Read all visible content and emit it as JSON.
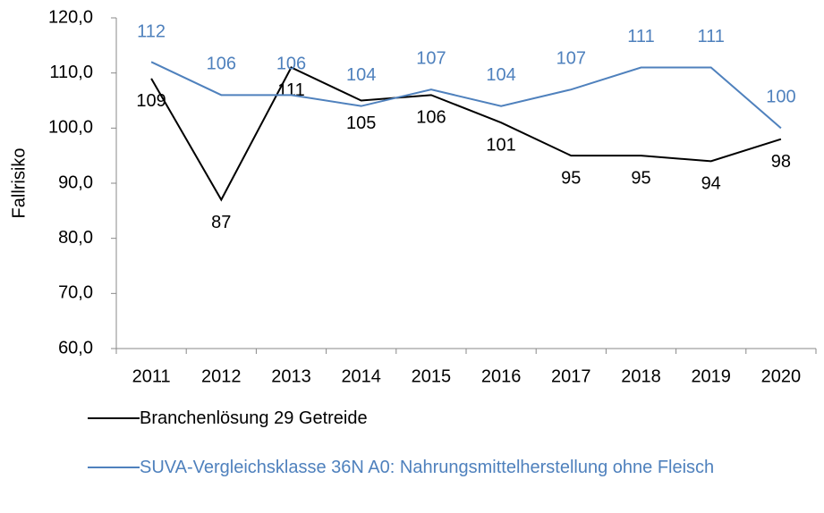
{
  "chart_data": {
    "type": "line",
    "y_label": "Fallrisiko",
    "categories": [
      "2011",
      "2012",
      "2013",
      "2014",
      "2015",
      "2016",
      "2017",
      "2018",
      "2019",
      "2020"
    ],
    "series": [
      {
        "name": "Branchenlösung 29 Getreide",
        "color": "#000000",
        "values": [
          109,
          87,
          111,
          105,
          106,
          101,
          95,
          95,
          94,
          98
        ]
      },
      {
        "name": "SUVA-Vergleichsklasse 36N A0: Nahrungsmittelherstellung ohne Fleisch",
        "color": "#4f81bd",
        "values": [
          112,
          106,
          106,
          104,
          107,
          104,
          107,
          111,
          111,
          100
        ]
      }
    ],
    "ylim": [
      60,
      120
    ],
    "yticks": [
      {
        "value": 60,
        "label": "60,0"
      },
      {
        "value": 70,
        "label": "70,0"
      },
      {
        "value": 80,
        "label": "80,0"
      },
      {
        "value": 90,
        "label": "90,0"
      },
      {
        "value": 100,
        "label": "100,0"
      },
      {
        "value": 110,
        "label": "110,0"
      },
      {
        "value": 120,
        "label": "120,0"
      }
    ],
    "grid": false
  }
}
